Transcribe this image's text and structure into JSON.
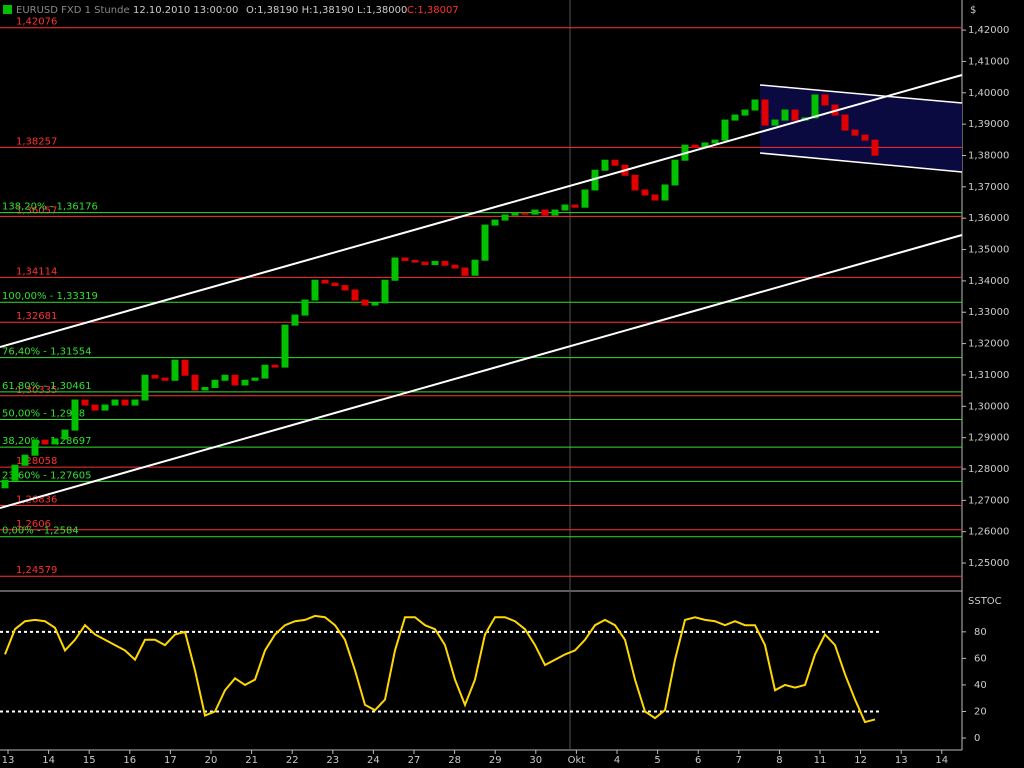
{
  "chart_data": [
    {
      "type": "candlestick",
      "header": {
        "symbol": "EURUSD FXD 1 Stunde",
        "datetime": "12.10.2010 13:00:00",
        "ohl": "O:1,38190 H:1,38190 L:1,38000",
        "close": "C:1,38007"
      },
      "axis_label": "$",
      "categories": [
        "13",
        "14",
        "15",
        "16",
        "17",
        "20",
        "21",
        "22",
        "23",
        "24",
        "27",
        "28",
        "29",
        "30",
        "Okt",
        "4",
        "5",
        "6",
        "7",
        "8",
        "11",
        "12",
        "13",
        "14"
      ],
      "open": [
        1.274,
        1.2764,
        1.2812,
        1.2844,
        1.2892,
        1.288,
        1.2896,
        1.2924,
        1.302,
        1.3004,
        1.2988,
        1.3004,
        1.302,
        1.3004,
        1.302,
        1.3099,
        1.309,
        1.3083,
        1.3147,
        1.3099,
        1.3052,
        1.306,
        1.3083,
        1.3099,
        1.3068,
        1.3083,
        1.309,
        1.3131,
        1.3125,
        1.3259,
        1.3291,
        1.3339,
        1.3402,
        1.3393,
        1.3385,
        1.3371,
        1.3339,
        1.3323,
        1.333,
        1.3402,
        1.3473,
        1.3465,
        1.346,
        1.3452,
        1.3462,
        1.345,
        1.3441,
        1.3418,
        1.3466,
        1.3578,
        1.3594,
        1.361,
        1.3616,
        1.3613,
        1.3626,
        1.361,
        1.3626,
        1.3642,
        1.3635,
        1.369,
        1.3753,
        1.3785,
        1.3769,
        1.3737,
        1.369,
        1.3674,
        1.3658,
        1.3706,
        1.3785,
        1.3833,
        1.3826,
        1.384,
        1.3849,
        1.3913,
        1.3929,
        1.3945,
        1.3977,
        1.3897,
        1.3913,
        1.3945,
        1.3913,
        1.392,
        1.3993,
        1.3961,
        1.3929,
        1.3881,
        1.3865,
        1.3849
      ],
      "close": [
        1.2764,
        1.2812,
        1.2844,
        1.2892,
        1.288,
        1.2896,
        1.2924,
        1.302,
        1.3004,
        1.2988,
        1.3004,
        1.302,
        1.3004,
        1.302,
        1.3099,
        1.309,
        1.3083,
        1.3147,
        1.3099,
        1.3052,
        1.306,
        1.3083,
        1.3099,
        1.3068,
        1.3083,
        1.309,
        1.3131,
        1.3125,
        1.3259,
        1.3291,
        1.3339,
        1.3402,
        1.3393,
        1.3385,
        1.3371,
        1.3339,
        1.3323,
        1.333,
        1.3402,
        1.3473,
        1.3465,
        1.346,
        1.3452,
        1.3462,
        1.345,
        1.3441,
        1.3418,
        1.3466,
        1.3578,
        1.3594,
        1.361,
        1.3616,
        1.3613,
        1.3626,
        1.361,
        1.3626,
        1.3642,
        1.3635,
        1.369,
        1.3753,
        1.3785,
        1.3769,
        1.3737,
        1.369,
        1.3674,
        1.3658,
        1.3706,
        1.3785,
        1.3833,
        1.3826,
        1.384,
        1.3849,
        1.3913,
        1.3929,
        1.3945,
        1.3977,
        1.3897,
        1.3913,
        1.3945,
        1.3913,
        1.392,
        1.3993,
        1.3961,
        1.3929,
        1.3881,
        1.3865,
        1.3849,
        1.3801
      ],
      "up_color": "#00c000",
      "down_color": "#e00000",
      "ylim": [
        1.2414,
        1.4296
      ],
      "yticks": [
        {
          "value": 1.25,
          "label": "1,25000"
        },
        {
          "value": 1.26,
          "label": "1,26000"
        },
        {
          "value": 1.27,
          "label": "1,27000"
        },
        {
          "value": 1.28,
          "label": "1,28000"
        },
        {
          "value": 1.29,
          "label": "1,29000"
        },
        {
          "value": 1.3,
          "label": "1,30000"
        },
        {
          "value": 1.31,
          "label": "1,31000"
        },
        {
          "value": 1.32,
          "label": "1,32000"
        },
        {
          "value": 1.33,
          "label": "1,33000"
        },
        {
          "value": 1.34,
          "label": "1,34000"
        },
        {
          "value": 1.35,
          "label": "1,35000"
        },
        {
          "value": 1.36,
          "label": "1,36000"
        },
        {
          "value": 1.37,
          "label": "1,37000"
        },
        {
          "value": 1.38,
          "label": "1,38000"
        },
        {
          "value": 1.39,
          "label": "1,39000"
        },
        {
          "value": 1.4,
          "label": "1,40000"
        },
        {
          "value": 1.41,
          "label": "1,41000"
        },
        {
          "value": 1.42,
          "label": "1,42000"
        }
      ],
      "levels": [
        {
          "value": 1.42076,
          "label": "1,42076",
          "color": "#ff3030"
        },
        {
          "value": 1.38257,
          "label": "1,38257",
          "color": "#ff3030"
        },
        {
          "value": 1.36057,
          "label": "1,36057",
          "color": "#ff3030"
        },
        {
          "value": 1.34114,
          "label": "1,34114",
          "color": "#ff3030"
        },
        {
          "value": 1.32681,
          "label": "1,32681",
          "color": "#ff3030"
        },
        {
          "value": 1.30335,
          "label": "1,30335",
          "color": "#ff3030"
        },
        {
          "value": 1.28058,
          "label": "1,28058",
          "color": "#ff3030"
        },
        {
          "value": 1.26836,
          "label": "1,26836",
          "color": "#ff3030"
        },
        {
          "value": 1.2606,
          "label": "1,2606",
          "color": "#ff3030"
        },
        {
          "value": 1.24579,
          "label": "1,24579",
          "color": "#ff3030"
        },
        {
          "value": 1.36176,
          "label": "138,20% - 1,36176",
          "color": "#30e030"
        },
        {
          "value": 1.33319,
          "label": "100,00% - 1,33319",
          "color": "#30e030"
        },
        {
          "value": 1.31554,
          "label": "76,40% - 1,31554",
          "color": "#30e030"
        },
        {
          "value": 1.30461,
          "label": "61,80% - 1,30461",
          "color": "#30e030"
        },
        {
          "value": 1.2958,
          "label": "50,00% - 1,2958",
          "color": "#30e030"
        },
        {
          "value": 1.28697,
          "label": "38,20% - 1,28697",
          "color": "#30e030"
        },
        {
          "value": 1.27605,
          "label": "23,60% - 1,27605",
          "color": "#30e030"
        },
        {
          "value": 1.2584,
          "label": "0,00% - 1,2584",
          "color": "#30e030"
        }
      ]
    },
    {
      "type": "line",
      "title": "SSTOC",
      "values": [
        63,
        82,
        88,
        89,
        88,
        83,
        66,
        74,
        85,
        78,
        74,
        70,
        66,
        59,
        74,
        74,
        70,
        78,
        80,
        51,
        17,
        20,
        36,
        45,
        40,
        44,
        66,
        78,
        85,
        88,
        89,
        92,
        91,
        85,
        74,
        51,
        25,
        21,
        29,
        66,
        91,
        91,
        85,
        82,
        70,
        44,
        25,
        44,
        78,
        91,
        91,
        88,
        82,
        70,
        55,
        59,
        63,
        66,
        74,
        85,
        89,
        85,
        74,
        44,
        20,
        15,
        21,
        59,
        89,
        91,
        89,
        88,
        85,
        88,
        85,
        85,
        70,
        36,
        40,
        38,
        40,
        63,
        78,
        70,
        48,
        29,
        12,
        14
      ],
      "color": "#ffd700",
      "ylim": [
        -9,
        110
      ],
      "yticks": [
        0,
        20,
        40,
        60,
        80
      ],
      "levels": [
        80,
        20
      ]
    }
  ]
}
